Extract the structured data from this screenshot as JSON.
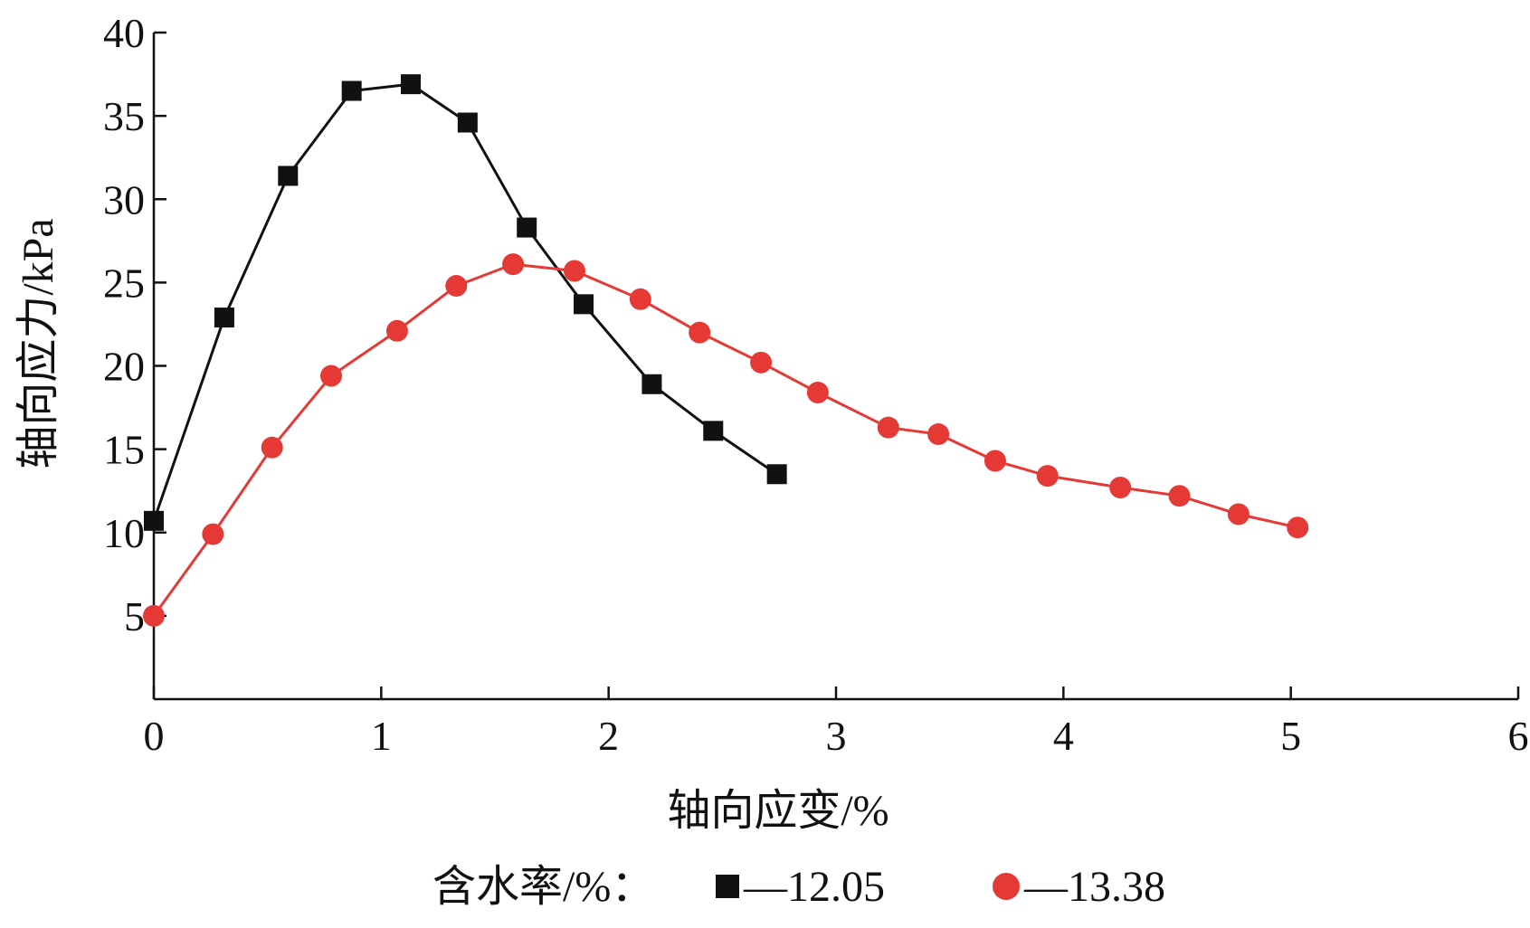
{
  "chart_data": {
    "type": "line",
    "title": "",
    "xlabel": "轴向应变/%",
    "ylabel": "轴向应力/kPa",
    "xlim": [
      0,
      6
    ],
    "ylim": [
      0,
      40
    ],
    "x_ticks": [
      0,
      1,
      2,
      3,
      4,
      5,
      6
    ],
    "x_tick_labels": [
      "0",
      "1",
      "2",
      "3",
      "4",
      "5",
      "6"
    ],
    "y_ticks": [
      5,
      10,
      15,
      20,
      25,
      30,
      35,
      40
    ],
    "y_tick_labels": [
      "5",
      "10",
      "15",
      "20",
      "25",
      "30",
      "35",
      "40"
    ],
    "grid": false,
    "legend": {
      "placement": "bottom",
      "title": "含水率/%："
    },
    "series": [
      {
        "name": "12.05",
        "legend_label": "—12.05",
        "color": "#111111",
        "marker": "square",
        "points": [
          [
            0.0,
            10.7
          ],
          [
            0.31,
            22.9
          ],
          [
            0.59,
            31.4
          ],
          [
            0.87,
            36.5
          ],
          [
            1.13,
            36.9
          ],
          [
            1.38,
            34.6
          ],
          [
            1.64,
            28.3
          ],
          [
            1.89,
            23.7
          ],
          [
            2.19,
            18.9
          ],
          [
            2.46,
            16.1
          ],
          [
            2.74,
            13.5
          ]
        ]
      },
      {
        "name": "13.38",
        "legend_label": "—13.38",
        "color": "#e53935",
        "marker": "circle",
        "points": [
          [
            0.0,
            5.0
          ],
          [
            0.26,
            9.9
          ],
          [
            0.52,
            15.1
          ],
          [
            0.78,
            19.4
          ],
          [
            1.07,
            22.1
          ],
          [
            1.33,
            24.8
          ],
          [
            1.58,
            26.1
          ],
          [
            1.85,
            25.7
          ],
          [
            2.14,
            24.0
          ],
          [
            2.4,
            22.0
          ],
          [
            2.67,
            20.2
          ],
          [
            2.92,
            18.4
          ],
          [
            3.23,
            16.3
          ],
          [
            3.45,
            15.9
          ],
          [
            3.7,
            14.3
          ],
          [
            3.93,
            13.4
          ],
          [
            4.25,
            12.7
          ],
          [
            4.51,
            12.2
          ],
          [
            4.77,
            11.1
          ],
          [
            5.03,
            10.3
          ]
        ]
      }
    ]
  }
}
